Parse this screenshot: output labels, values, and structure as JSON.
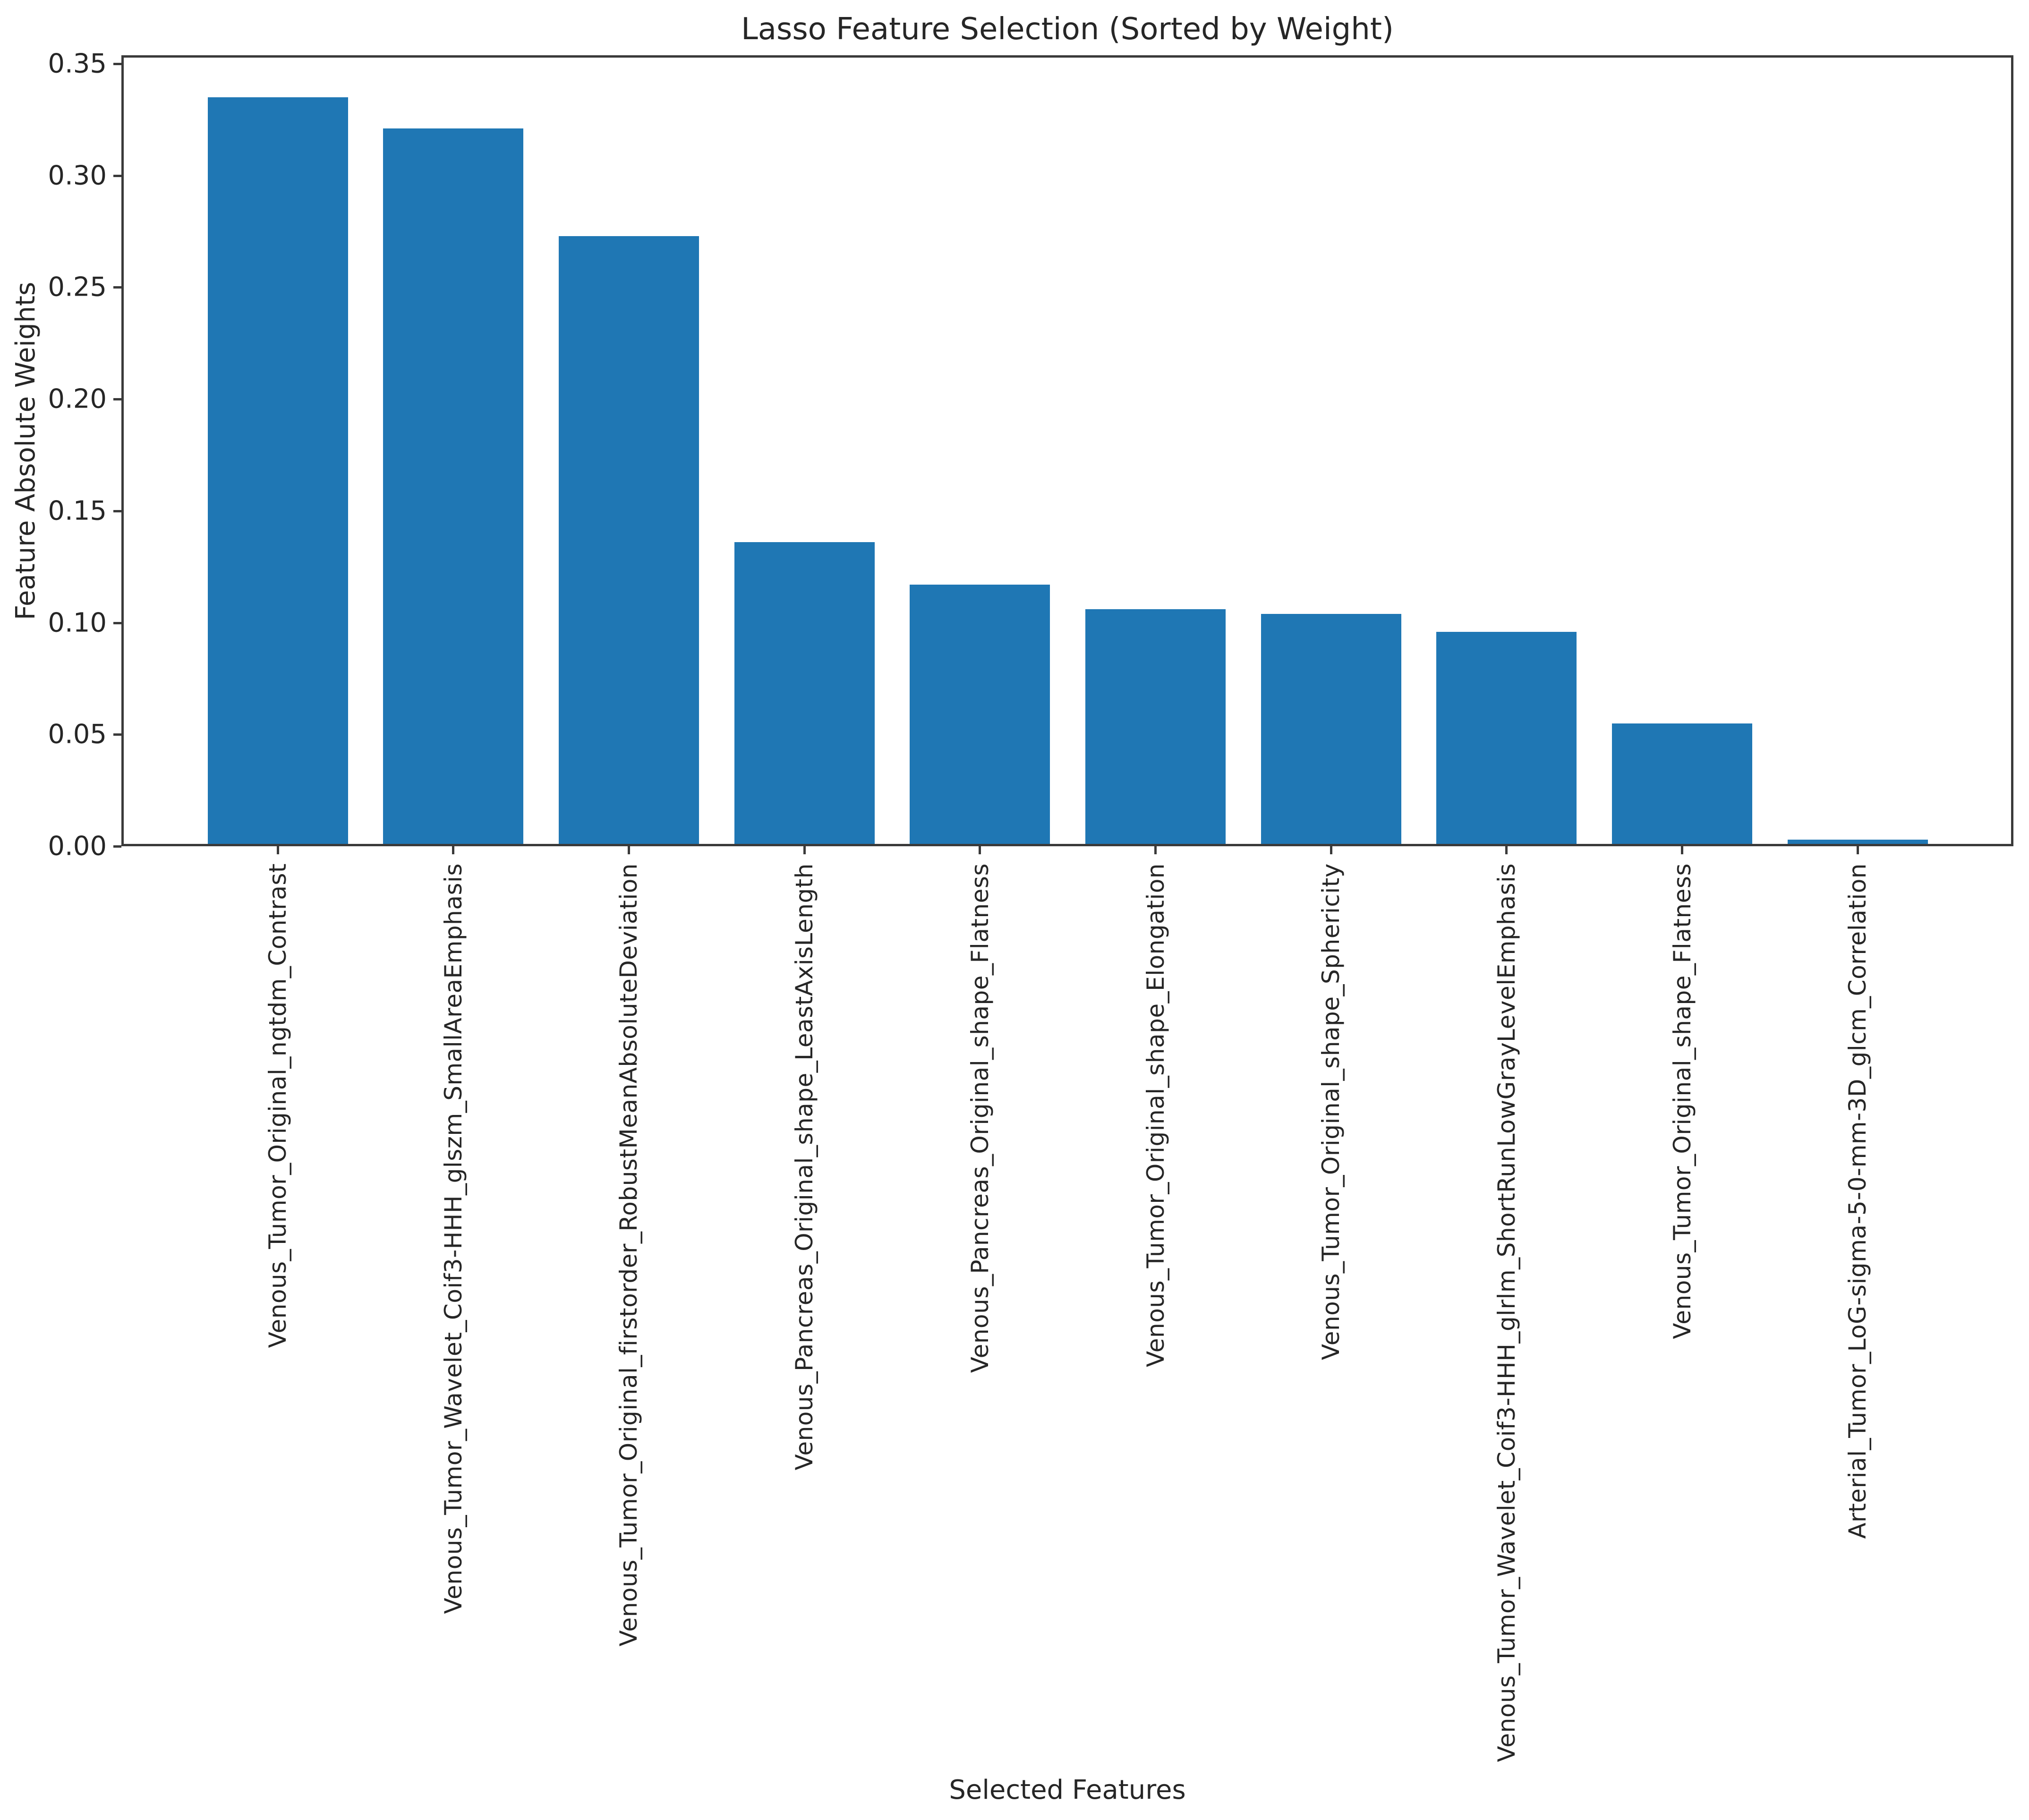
{
  "chart_data": {
    "type": "bar",
    "title": "Lasso Feature Selection (Sorted by Weight)",
    "xlabel": "Selected Features",
    "ylabel": "Feature Absolute Weights",
    "categories": [
      "Venous_Tumor_Original_ngtdm_Contrast",
      "Venous_Tumor_Wavelet_Coif3-HHH_glszm_SmallAreaEmphasis",
      "Venous_Tumor_Original_firstorder_RobustMeanAbsoluteDeviation",
      "Venous_Pancreas_Original_shape_LeastAxisLength",
      "Venous_Pancreas_Original_shape_Flatness",
      "Venous_Tumor_Original_shape_Elongation",
      "Venous_Tumor_Original_shape_Sphericity",
      "Venous_Tumor_Wavelet_Coif3-HHH_glrlm_ShortRunLowGrayLevelEmphasis",
      "Venous_Tumor_Original_shape_Flatness",
      "Arterial_Tumor_LoG-sigma-5-0-mm-3D_glcm_Correlation"
    ],
    "values": [
      0.335,
      0.321,
      0.273,
      0.136,
      0.117,
      0.106,
      0.104,
      0.096,
      0.055,
      0.003
    ],
    "ytick_labels": [
      "0.00",
      "0.05",
      "0.10",
      "0.15",
      "0.20",
      "0.25",
      "0.30",
      "0.35"
    ],
    "ylim": [
      0,
      0.3538
    ],
    "grid": false,
    "legend": null,
    "bar_color": "#1f77b4",
    "xtick_rotation_deg": 90
  }
}
